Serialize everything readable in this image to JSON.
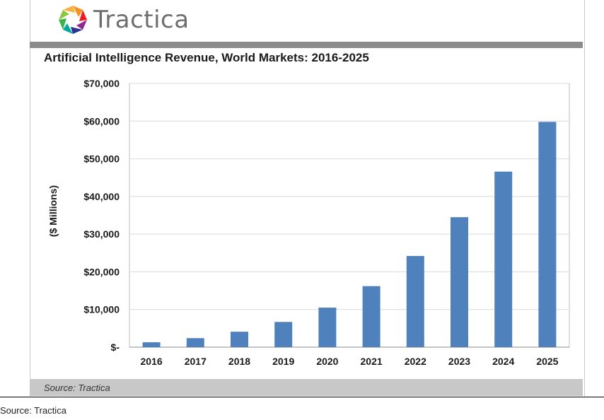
{
  "brand": {
    "name": "Tractica",
    "logo_icon": "tractica-logo-icon"
  },
  "chart_data": {
    "type": "bar",
    "title": "Artificial Intelligence Revenue, World Markets: 2016-2025",
    "xlabel": "",
    "ylabel": "($ Millions)",
    "categories": [
      "2016",
      "2017",
      "2018",
      "2019",
      "2020",
      "2021",
      "2022",
      "2023",
      "2024",
      "2025"
    ],
    "values": [
      1300,
      2400,
      4100,
      6700,
      10500,
      16200,
      24200,
      34500,
      46600,
      59800
    ],
    "ylim": [
      0,
      70000
    ],
    "yticks": [
      0,
      10000,
      20000,
      30000,
      40000,
      50000,
      60000,
      70000
    ],
    "ytick_labels": [
      "$-",
      "$10,000",
      "$20,000",
      "$30,000",
      "$40,000",
      "$50,000",
      "$60,000",
      "$70,000"
    ],
    "grid": true,
    "legend": "none",
    "bar_color": "#4f81bd"
  },
  "source_inner": "Source: Tractica",
  "caption": "Source: Tractica"
}
